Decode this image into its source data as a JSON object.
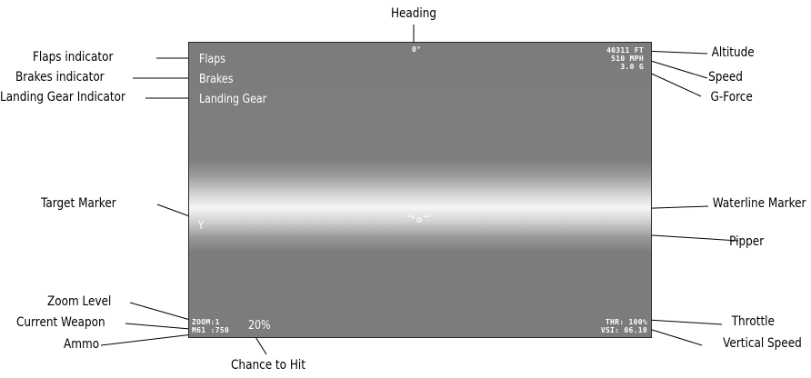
{
  "callouts": {
    "heading": "Heading",
    "flaps_indicator": "Flaps indicator",
    "brakes_indicator": "Brakes indicator",
    "landing_gear_indicator": "Landing Gear Indicator",
    "target_marker": "Target Marker",
    "zoom_level": "Zoom Level",
    "current_weapon": "Current Weapon",
    "ammo": "Ammo",
    "chance_to_hit": "Chance to Hit",
    "altitude": "Altitude",
    "speed": "Speed",
    "g_force": "G-Force",
    "waterline_marker": "Waterline Marker",
    "pipper": "Pipper",
    "throttle": "Throttle",
    "vertical_speed": "Vertical Speed"
  },
  "hud": {
    "heading": "0°",
    "flaps": "Flaps",
    "brakes": "Brakes",
    "landing_gear": "Landing Gear",
    "altitude": "40311 FT",
    "speed": "510 MPH",
    "g_force": "3.0 G",
    "target_marker": "Y",
    "zoom": "ZOOM:1",
    "weapon_ammo": "M61 :750",
    "chance_to_hit": "20%",
    "throttle": "THR: 100%",
    "vsi": "VSI: 06.10"
  },
  "colors": {
    "hud_text": "#ffffff",
    "sky_gray": "#7c7c7c",
    "horizon_glow": "#f6f6f6"
  }
}
